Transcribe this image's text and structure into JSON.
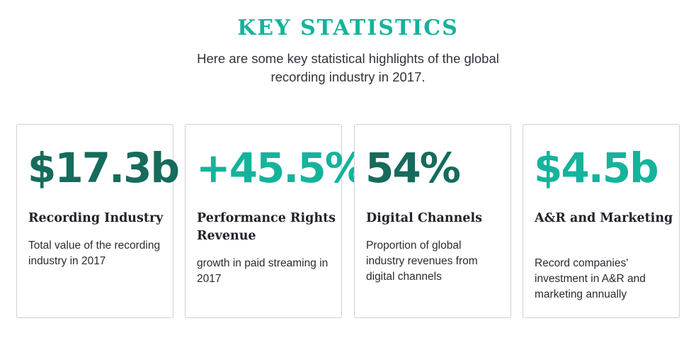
{
  "header": {
    "title": "KEY STATISTICS",
    "subtitle": "Here are some key statistical highlights of the global recording industry in 2017."
  },
  "colors": {
    "accent": "#14b39a",
    "dark_accent": "#166b5c",
    "text": "#2a2a33",
    "border": "#cfcfd4"
  },
  "cards": [
    {
      "stat": "$17.3b",
      "title": "Recording Industry",
      "description": "Total value of the recording industry in 2017"
    },
    {
      "stat": "+45.5%",
      "title": "Performance Rights Revenue",
      "description": "growth in paid streaming in 2017"
    },
    {
      "stat": "54%",
      "title": "Digital Channels",
      "description": "Proportion of global industry revenues from digital channels"
    },
    {
      "stat": "$4.5b",
      "title": "A&R and Marketing",
      "description": "Record companies' investment in A&R and marketing annually"
    }
  ]
}
